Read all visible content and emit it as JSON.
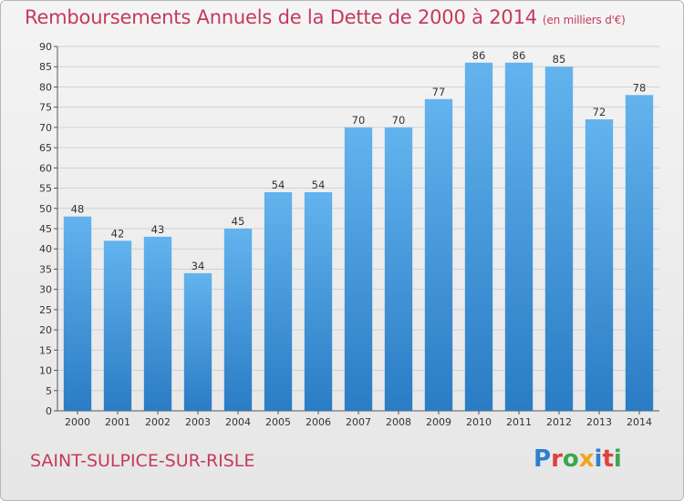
{
  "chart_data": {
    "type": "bar",
    "title": "Remboursements Annuels de la Dette de 2000 à 2014",
    "unit": "(en milliers d'€)",
    "categories": [
      "2000",
      "2001",
      "2002",
      "2003",
      "2004",
      "2005",
      "2006",
      "2007",
      "2008",
      "2009",
      "2010",
      "2011",
      "2012",
      "2013",
      "2014"
    ],
    "values": [
      48,
      42,
      43,
      34,
      45,
      54,
      54,
      70,
      70,
      77,
      86,
      86,
      85,
      72,
      78
    ],
    "ylim": [
      0,
      90
    ],
    "yticks": [
      0,
      5,
      10,
      15,
      20,
      25,
      30,
      35,
      40,
      45,
      50,
      55,
      60,
      65,
      70,
      75,
      80,
      85,
      90
    ],
    "grid": true,
    "bar_color": "#3a8fd8"
  },
  "commune": "SAINT-SULPICE-SUR-RISLE",
  "brand": {
    "letters": [
      {
        "ch": "P",
        "color": "#2f7fd0"
      },
      {
        "ch": "r",
        "color": "#e0413f"
      },
      {
        "ch": "o",
        "color": "#3aa84a"
      },
      {
        "ch": "x",
        "color": "#f2a51c"
      },
      {
        "ch": "i",
        "color": "#2f7fd0"
      },
      {
        "ch": "t",
        "color": "#e0413f"
      },
      {
        "ch": "i",
        "color": "#3aa84a"
      }
    ]
  }
}
